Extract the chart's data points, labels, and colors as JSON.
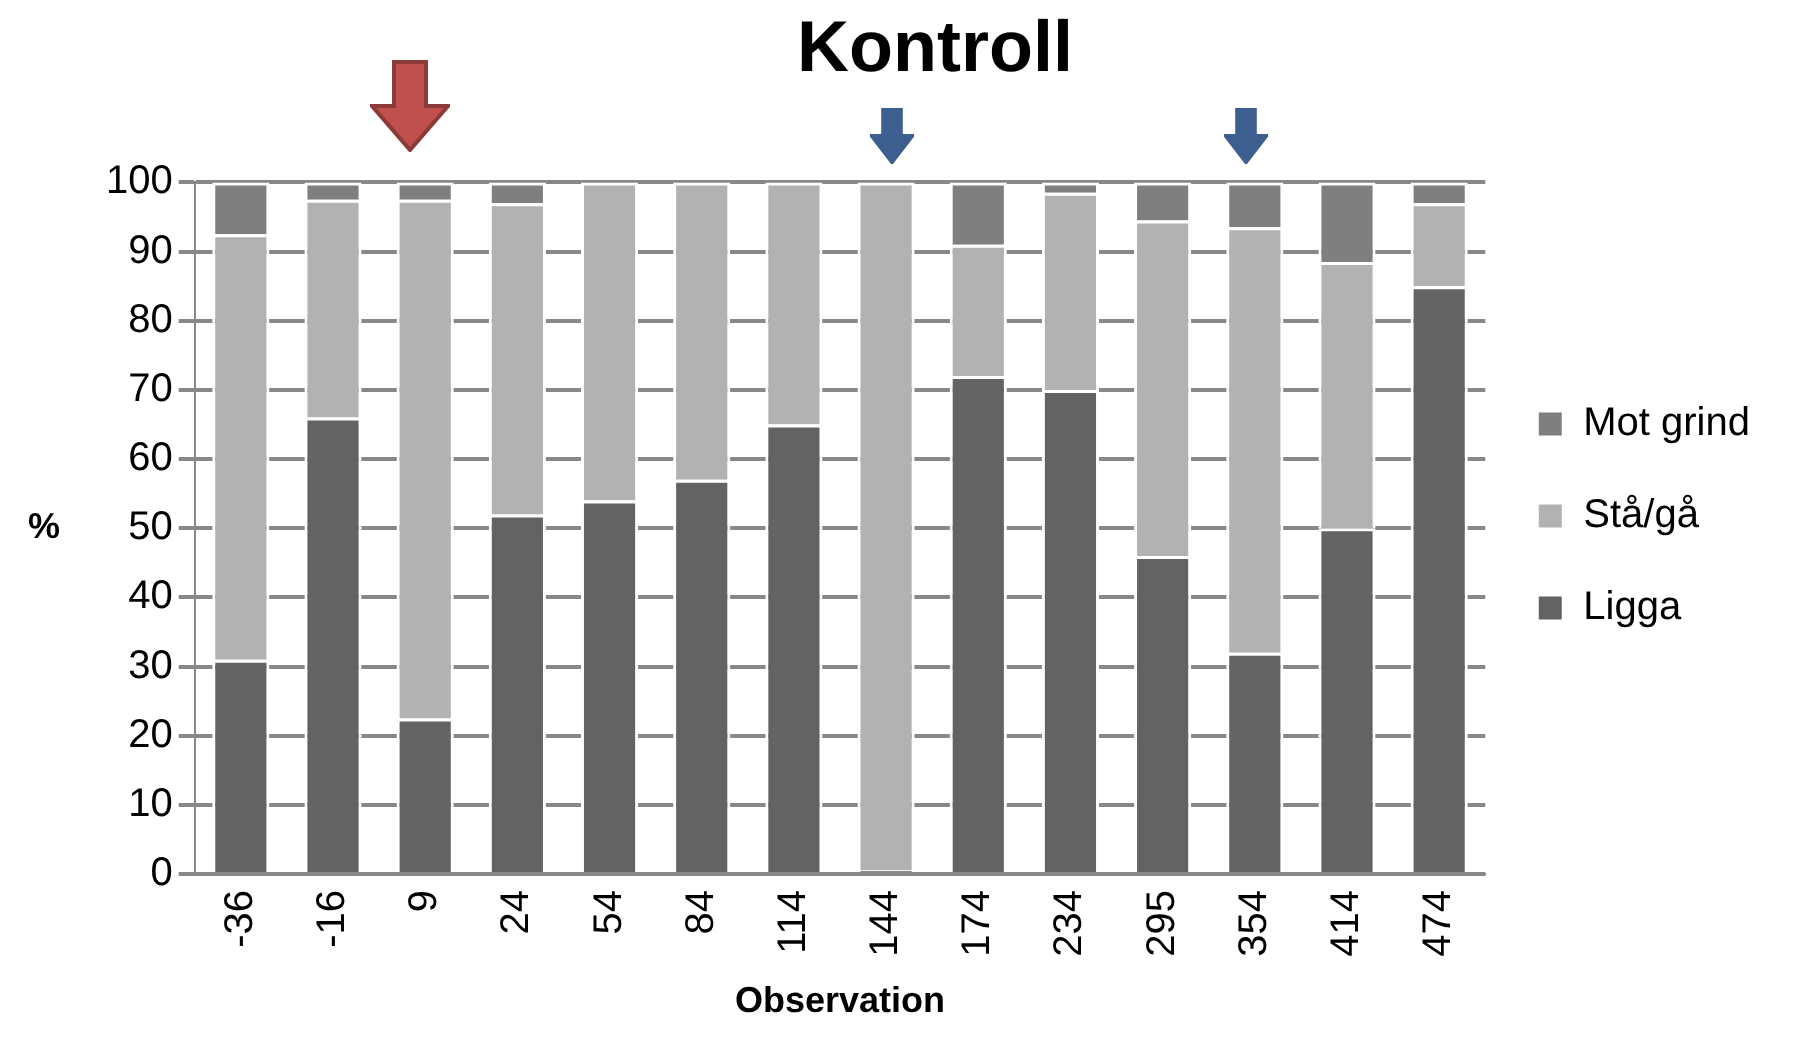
{
  "chart_data": {
    "type": "bar",
    "title": "Kontroll",
    "xlabel": "Observation",
    "ylabel": "%",
    "categories": [
      "-36",
      "-16",
      "9",
      "24",
      "54",
      "84",
      "114",
      "144",
      "174",
      "234",
      "295",
      "354",
      "414",
      "474"
    ],
    "stacked": true,
    "ylim": [
      0,
      100
    ],
    "yticks": [
      0,
      10,
      20,
      30,
      40,
      50,
      60,
      70,
      80,
      90,
      100
    ],
    "grid": "y",
    "legend": "right",
    "series": [
      {
        "name": "Ligga",
        "color": "#636363",
        "values": [
          31,
          66,
          22.5,
          52,
          54,
          57,
          65,
          0.5,
          72,
          70,
          46,
          32,
          50,
          85
        ]
      },
      {
        "name": "Stå/gå",
        "color": "#b2b2b2",
        "values": [
          61.5,
          31.5,
          75,
          45,
          46,
          43,
          35,
          99.5,
          19,
          28.5,
          48.5,
          61.5,
          38.5,
          12
        ]
      },
      {
        "name": "Mot grind",
        "color": "#7f7f7f",
        "values": [
          7.5,
          2.5,
          2.5,
          3,
          0,
          0,
          0,
          0,
          9,
          1.5,
          5.5,
          6.5,
          11.5,
          3
        ]
      }
    ]
  }
}
